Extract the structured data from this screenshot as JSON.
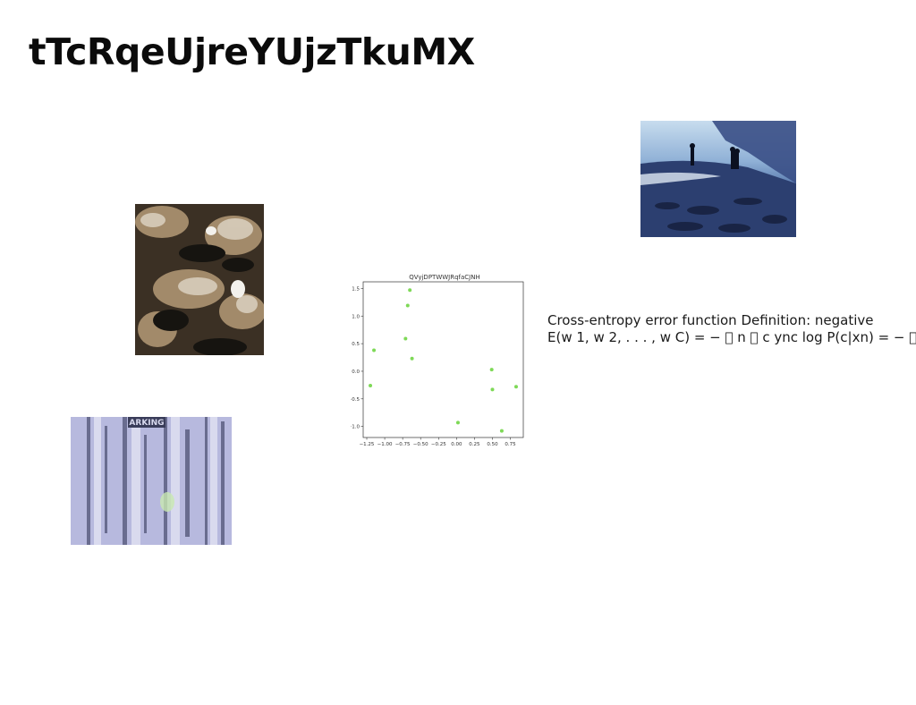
{
  "slide": {
    "title": "tTcRqeUjreYUjzTkuMX",
    "text_lines": [
      "Cross-entropy error function Definition: negative",
      "E(w 1, w 2, . . . , w C) = − \u0000 n \u0000 c ync log P(c|xn) = − \u0000 n \u0000 c"
    ],
    "images": {
      "beach": "beach-photo",
      "marble": "marble-texture-photo",
      "door": "parking-door-photo",
      "door_sign": "ARKING"
    }
  },
  "chart_data": {
    "type": "scatter",
    "title": "QVyjDPTWWJRqfaCJNH",
    "xlabel": "",
    "ylabel": "",
    "xlim": [
      -1.3,
      0.93
    ],
    "ylim": [
      -1.2,
      1.62
    ],
    "x_ticks": [
      -1.25,
      -1.0,
      -0.75,
      -0.5,
      -0.25,
      0.0,
      0.25,
      0.5,
      0.75
    ],
    "x_tick_labels": [
      "−1.25",
      "−1.00",
      "−0.75",
      "−0.50",
      "−0.25",
      "0.00",
      "0.25",
      "0.50",
      "0.75"
    ],
    "y_ticks": [
      -1.0,
      -0.5,
      0.0,
      0.5,
      1.0,
      1.5
    ],
    "y_tick_labels": [
      "−1.0",
      "−0.5",
      "0.0",
      "0.5",
      "1.0",
      "1.5"
    ],
    "grid": false,
    "color": "#7ed957",
    "series": [
      {
        "points": [
          [
            -0.65,
            1.47
          ],
          [
            -0.68,
            1.19
          ],
          [
            -1.15,
            0.38
          ],
          [
            -0.71,
            0.59
          ],
          [
            -0.62,
            0.23
          ],
          [
            -1.2,
            -0.26
          ],
          [
            0.49,
            0.03
          ],
          [
            0.5,
            -0.33
          ],
          [
            0.83,
            -0.28
          ],
          [
            0.02,
            -0.93
          ],
          [
            0.63,
            -1.08
          ]
        ]
      }
    ]
  }
}
